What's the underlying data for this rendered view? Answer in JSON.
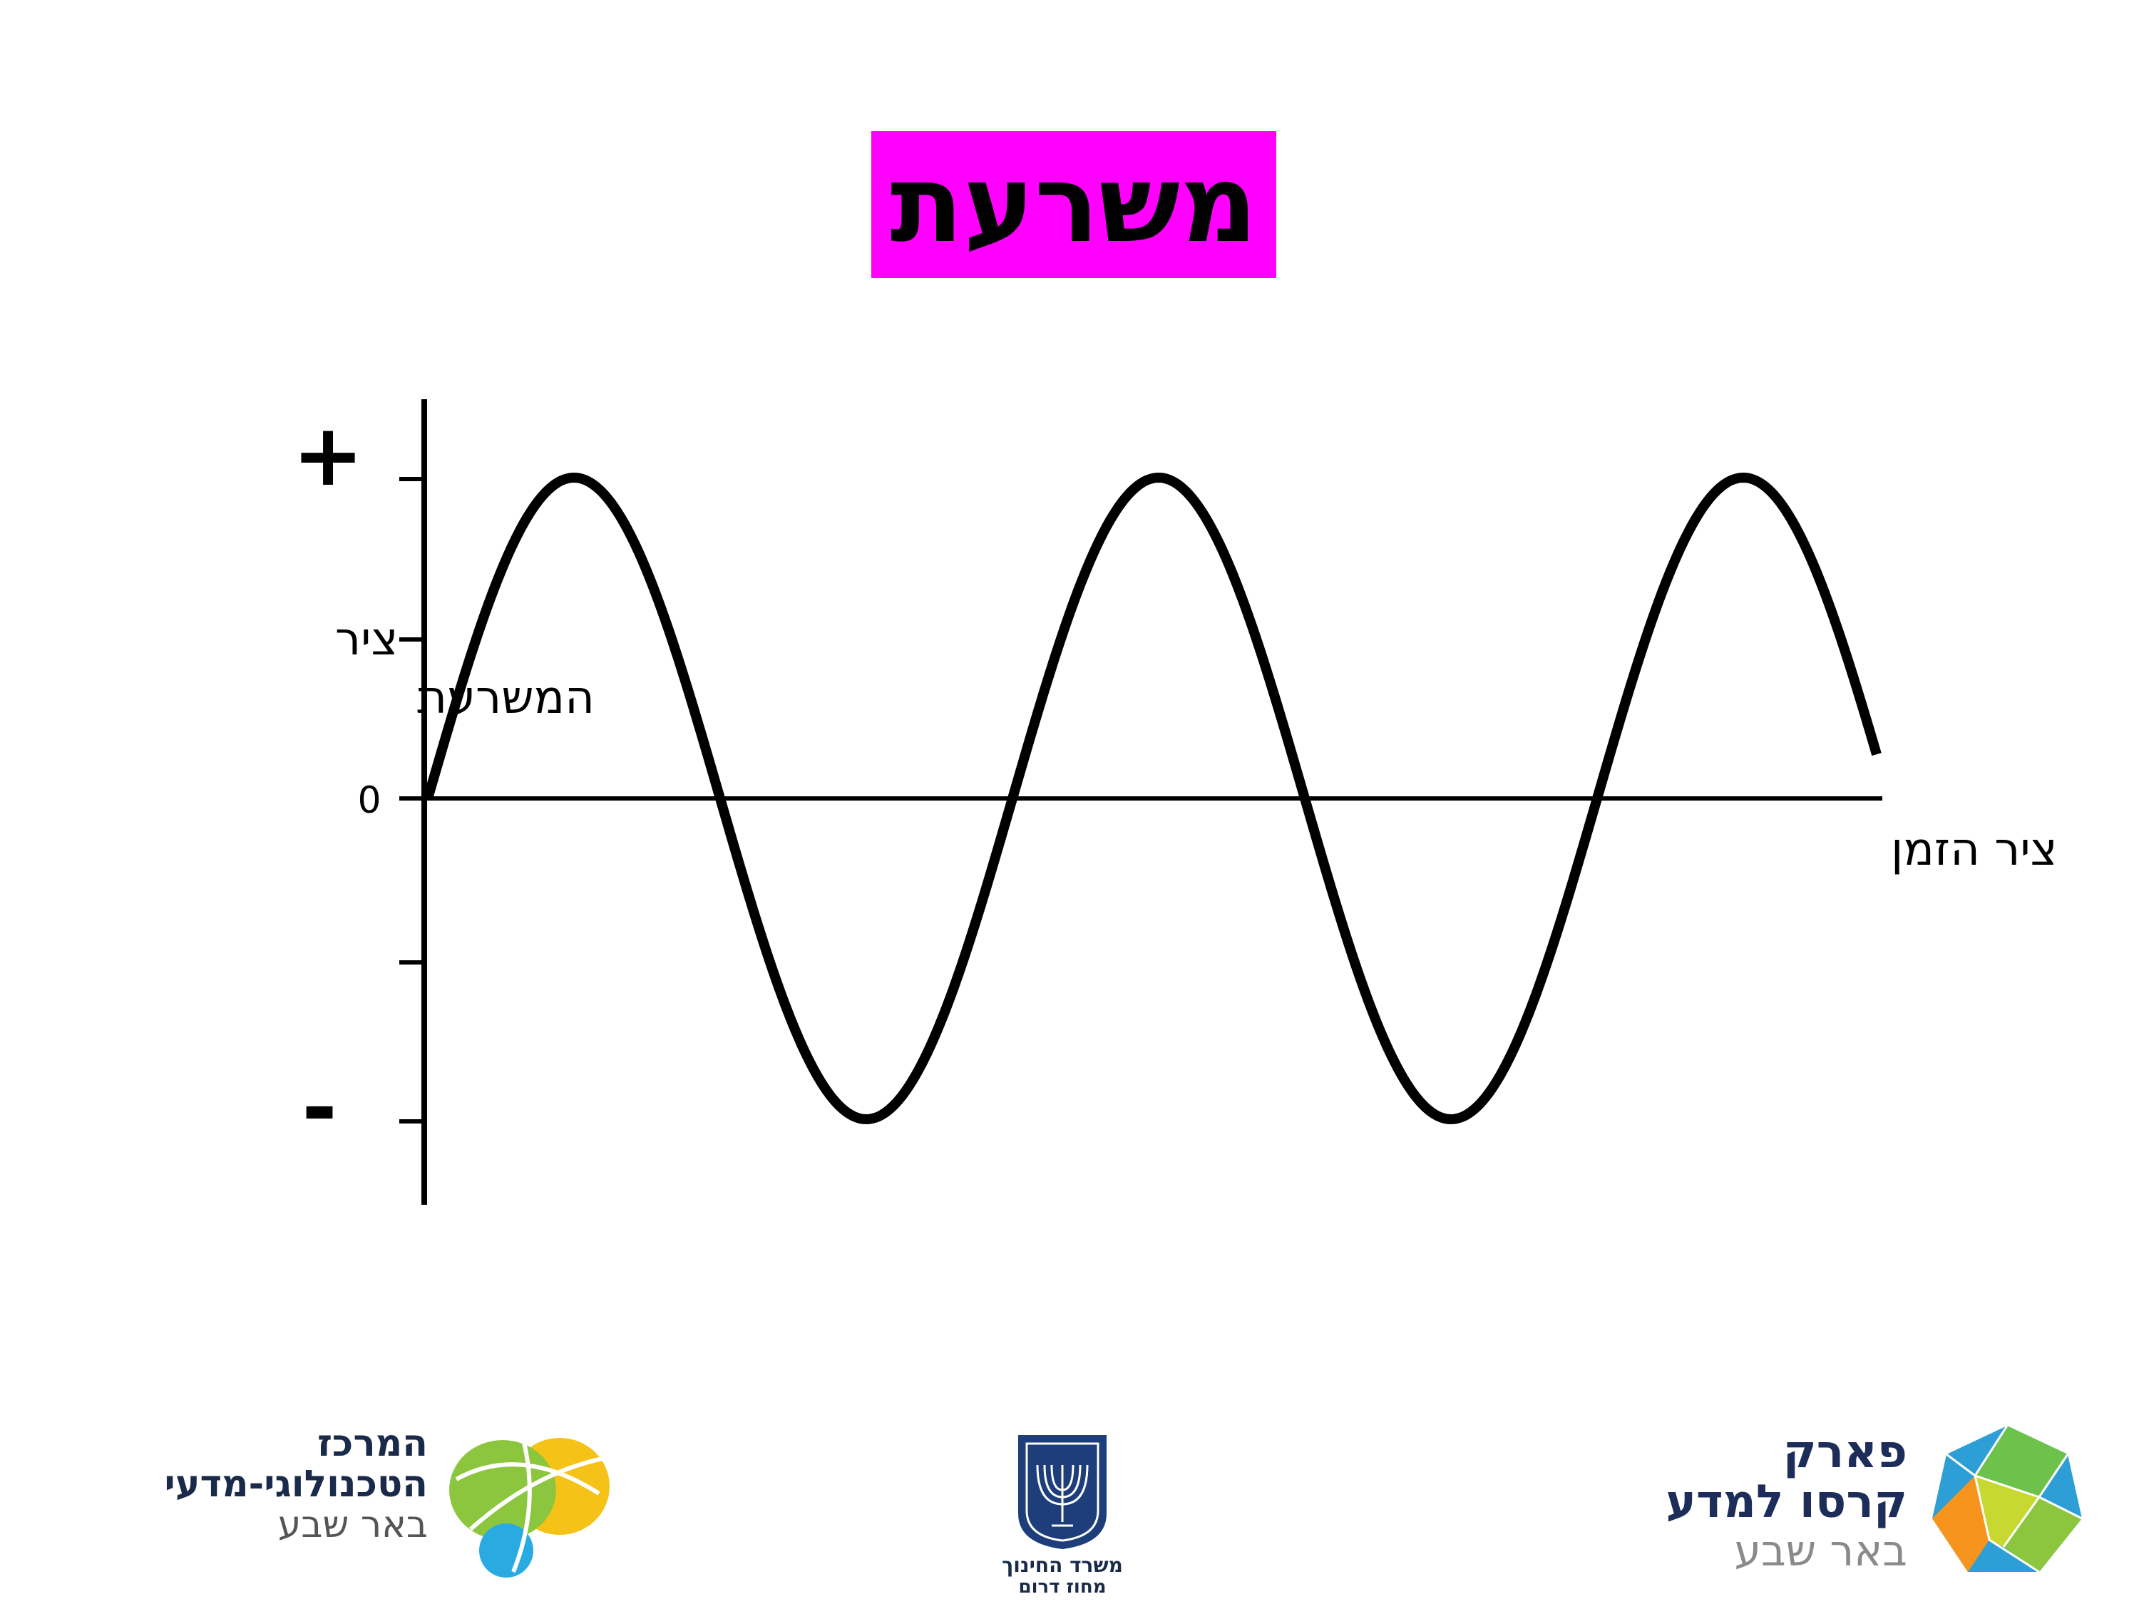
{
  "title": "משרעת",
  "diagram": {
    "plus_sign": "+",
    "minus_sign": "-",
    "y_axis_label_line1": "ציר",
    "y_axis_label_line2": "המשרעת",
    "zero_label": "0",
    "x_axis_label": "ציר הזמן",
    "colors": {
      "curve": "#000000",
      "axes": "#000000"
    }
  },
  "logos": {
    "left": {
      "line1": "המרכז",
      "line2": "הטכנולוגי-מדעי",
      "line3": "באר שבע"
    },
    "center": {
      "line1": "משרד החינוך",
      "line2": "מחוז דרום"
    },
    "right": {
      "line1": "פארק",
      "line2": "קרסו למדע",
      "line3": "באר שבע"
    }
  },
  "colors": {
    "title_background": "#ff00ff"
  }
}
